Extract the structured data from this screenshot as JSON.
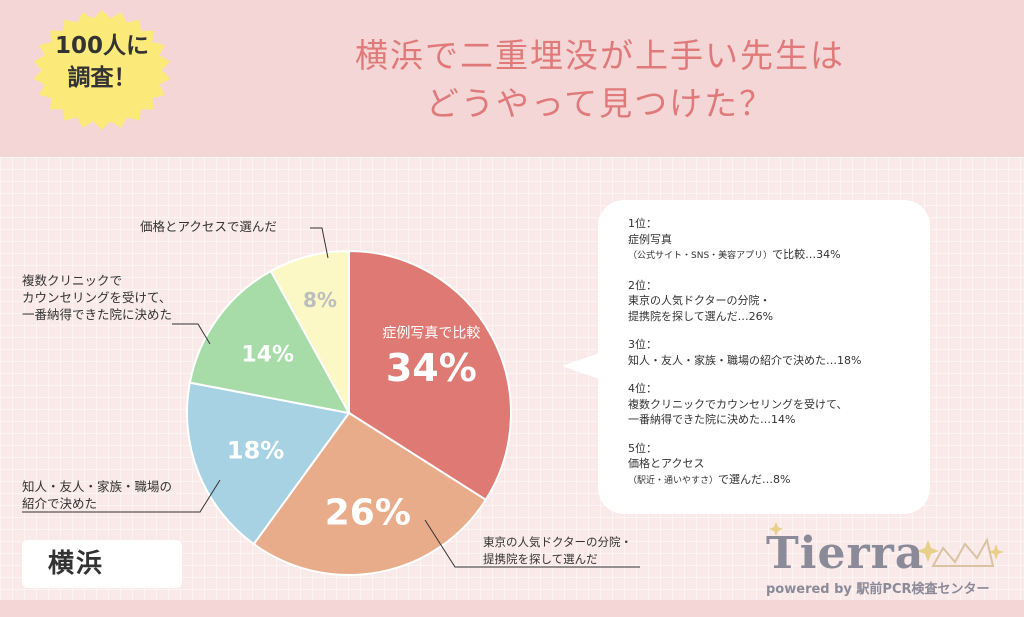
{
  "badge": {
    "line1": "100人に",
    "line2": "調査！"
  },
  "title": {
    "line1": "横浜で二重埋没が上手い先生は",
    "line2": "どうやって見つけた？"
  },
  "chart_data": {
    "type": "pie",
    "slices": [
      {
        "label": "症例写真で比較",
        "value": 34,
        "display": "34%",
        "color": "#de7a73"
      },
      {
        "label": "東京の人気ドクターの分院・提携院を探して選んだ",
        "value": 26,
        "display": "26%",
        "color": "#e9ac8b"
      },
      {
        "label": "知人・友人・家族・職場の紹介で決めた",
        "value": 18,
        "display": "18%",
        "color": "#a6d2e4"
      },
      {
        "label": "複数クリニックでカウンセリングを受けて、一番納得できた院に決めた",
        "value": 14,
        "display": "14%",
        "color": "#a7dca9"
      },
      {
        "label": "価格とアクセスで選んだ",
        "value": 8,
        "display": "8%",
        "color": "#fbf8c6"
      }
    ],
    "inner_label": "症例写真で比較"
  },
  "annotations": {
    "price": "価格とアクセスで選んだ",
    "multi": [
      "複数クリニックで",
      "カウンセリングを受けて、",
      "一番納得できた院に決めた"
    ],
    "friends": [
      "知人・友人・家族・職場の",
      "紹介で決めた"
    ],
    "tokyo": [
      "東京の人気ドクターの分院・",
      "提携院を探して選んだ"
    ]
  },
  "ranking": [
    {
      "rank": "1位：",
      "lines": [
        "症例写真"
      ],
      "small": "（公式サイト・SNS・美容アプリ）",
      "tail": "で比較…34%"
    },
    {
      "rank": "2位：",
      "lines": [
        "東京の人気ドクターの分院・",
        "提携院を探して選んだ…26%"
      ]
    },
    {
      "rank": "3位：",
      "lines": [
        "知人・友人・家族・職場の紹介で決めた…18%"
      ]
    },
    {
      "rank": "4位：",
      "lines": [
        "複数クリニックでカウンセリングを受けて、",
        "一番納得できた院に決めた…14%"
      ]
    },
    {
      "rank": "5位：",
      "lines": [
        "価格とアクセス"
      ],
      "small": "（駅近・通いやすさ）",
      "tail": "で選んだ…8%"
    }
  ],
  "city": "横浜",
  "logo": {
    "name": "Tierra",
    "tagline": "powered by 駅前PCR検査センター"
  },
  "colors": {
    "title": "#e07a7a",
    "badge": "#fbea7a",
    "header_bg": "#f4d6d6"
  }
}
